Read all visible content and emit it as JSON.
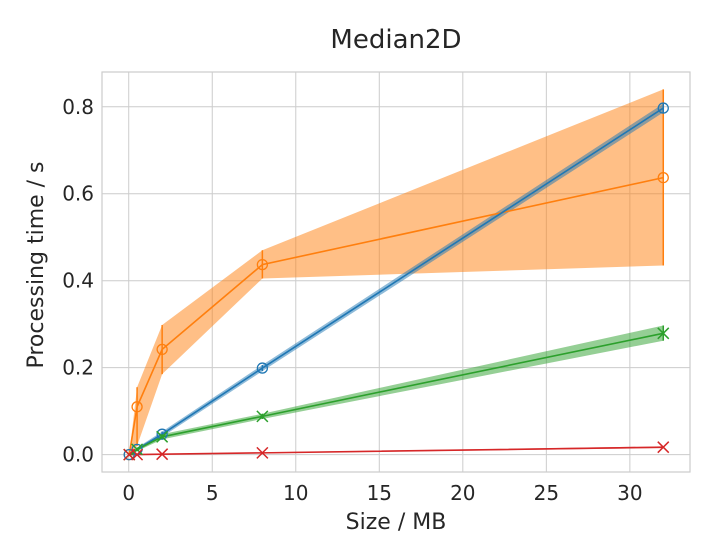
{
  "chart_data": {
    "type": "line",
    "title": "Median2D",
    "xlabel": "Size / MB",
    "ylabel": "Processing time / s",
    "xlim": [
      -1.6,
      33.6
    ],
    "ylim": [
      -0.04,
      0.88
    ],
    "xticks": [
      0,
      5,
      10,
      15,
      20,
      25,
      30
    ],
    "yticks": [
      0.0,
      0.2,
      0.4,
      0.6,
      0.8
    ],
    "xtick_labels": [
      "0",
      "5",
      "10",
      "15",
      "20",
      "25",
      "30"
    ],
    "ytick_labels": [
      "0.0",
      "0.2",
      "0.4",
      "0.6",
      "0.8"
    ],
    "grid": true,
    "legend": "none",
    "series": [
      {
        "color": "#ff7f0e",
        "marker": "circle",
        "x": [
          0.03,
          0.5,
          2,
          8,
          32
        ],
        "y": [
          0.0,
          0.11,
          0.242,
          0.437,
          0.637
        ],
        "lower": [
          0.0,
          0.02,
          0.185,
          0.405,
          0.435
        ],
        "upper": [
          0.0,
          0.155,
          0.298,
          0.47,
          0.84
        ]
      },
      {
        "color": "#1f77b4",
        "marker": "circle",
        "x": [
          0.03,
          0.5,
          2,
          8,
          32
        ],
        "y": [
          0.0,
          0.012,
          0.047,
          0.199,
          0.797
        ],
        "lower": [
          0.0,
          0.008,
          0.041,
          0.192,
          0.787
        ],
        "upper": [
          0.0,
          0.016,
          0.053,
          0.206,
          0.807
        ]
      },
      {
        "color": "#2ca02c",
        "marker": "x",
        "x": [
          0.03,
          0.5,
          2,
          8,
          32
        ],
        "y": [
          0.0,
          0.012,
          0.041,
          0.088,
          0.279
        ],
        "lower": [
          0.0,
          0.008,
          0.035,
          0.082,
          0.262
        ],
        "upper": [
          0.0,
          0.016,
          0.047,
          0.094,
          0.297
        ]
      },
      {
        "color": "#d62728",
        "marker": "x",
        "x": [
          0.03,
          0.5,
          2,
          8,
          32
        ],
        "y": [
          0.0,
          0.0,
          0.001,
          0.004,
          0.017
        ],
        "lower": [
          0.0,
          0.0,
          0.0,
          0.003,
          0.015
        ],
        "upper": [
          0.0,
          0.001,
          0.002,
          0.005,
          0.019
        ]
      }
    ]
  }
}
